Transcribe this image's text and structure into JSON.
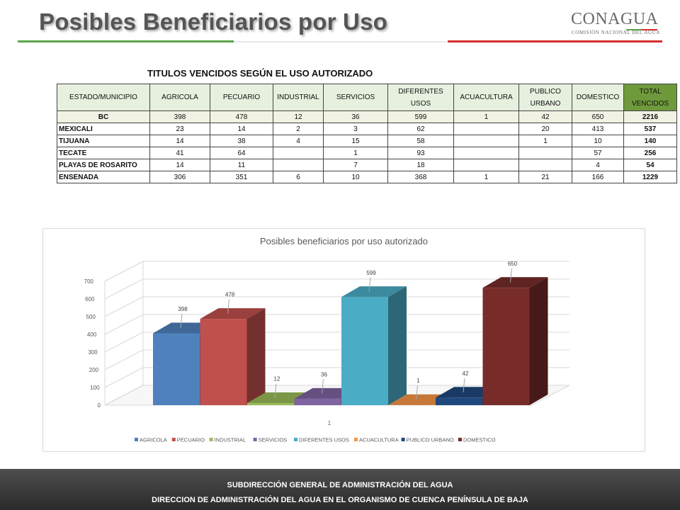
{
  "title": "Posibles Beneficiarios por Uso",
  "logo": {
    "name": "CONAGUA",
    "subtitle": "COMISIÓN NACIONAL DEL AGUA"
  },
  "colors": {
    "title_underline_left": "#5aa64a",
    "title_underline_right": "#d62c2c",
    "footer_background": "#3a3a3a"
  },
  "table": {
    "caption": "TITULOS VENCIDOS SEGÚN EL USO AUTORIZADO",
    "headers": [
      "ESTADO/MUNICIPIO",
      "AGRICOLA",
      "PECUARIO",
      "INDUSTRIAL",
      "SERVICIOS",
      "DIFERENTES USOS",
      "ACUACULTURA",
      "PUBLICO URBANO",
      "DOMESTICO",
      "TOTAL VENCIDOS"
    ],
    "rows": [
      [
        "BC",
        "398",
        "478",
        "12",
        "36",
        "599",
        "1",
        "42",
        "650",
        "2216"
      ],
      [
        "MEXICALI",
        "23",
        "14",
        "2",
        "3",
        "62",
        "",
        "20",
        "413",
        "537"
      ],
      [
        "TIJUANA",
        "14",
        "38",
        "4",
        "15",
        "58",
        "",
        "1",
        "10",
        "140"
      ],
      [
        "TECATE",
        "41",
        "64",
        "",
        "1",
        "93",
        "",
        "",
        "57",
        "256"
      ],
      [
        "PLAYAS DE ROSARITO",
        "14",
        "11",
        "",
        "7",
        "18",
        "",
        "",
        "4",
        "54"
      ],
      [
        "ENSENADA",
        "306",
        "351",
        "6",
        "10",
        "368",
        "1",
        "21",
        "166",
        "1229"
      ]
    ]
  },
  "chart_data": {
    "type": "bar",
    "style": "3d clustered column",
    "title": "Posibles beneficiarios por uso autorizado",
    "categories": [
      "1"
    ],
    "ylim": [
      0,
      700
    ],
    "yticks": [
      0,
      100,
      200,
      300,
      400,
      500,
      600,
      700
    ],
    "grid": true,
    "legend_position": "bottom",
    "series": [
      {
        "name": "AGRICOLA",
        "values": [
          398
        ],
        "color": "#4f81bd"
      },
      {
        "name": "PECUARIO",
        "values": [
          478
        ],
        "color": "#c0504d"
      },
      {
        "name": "INDUSTRIAL",
        "values": [
          12
        ],
        "color": "#9bbb59"
      },
      {
        "name": "SERVICIOS",
        "values": [
          36
        ],
        "color": "#8064a2"
      },
      {
        "name": "DIFERENTES USOS",
        "values": [
          599
        ],
        "color": "#4bacc6"
      },
      {
        "name": "ACUACULTURA",
        "values": [
          1
        ],
        "color": "#f79646"
      },
      {
        "name": "PUBLICO URBANO",
        "values": [
          42
        ],
        "color": "#1f497d"
      },
      {
        "name": "DOMESTICO",
        "values": [
          650
        ],
        "color": "#772c2a"
      }
    ]
  },
  "footer": {
    "line1": "SUBDIRECCIÓN GENERAL DE ADMINISTRACIÓN DEL AGUA",
    "line2": "DIRECCION DE ADMINISTRACIÓN DEL AGUA EN EL ORGANISMO DE CUENCA PENÍNSULA DE BAJA"
  }
}
